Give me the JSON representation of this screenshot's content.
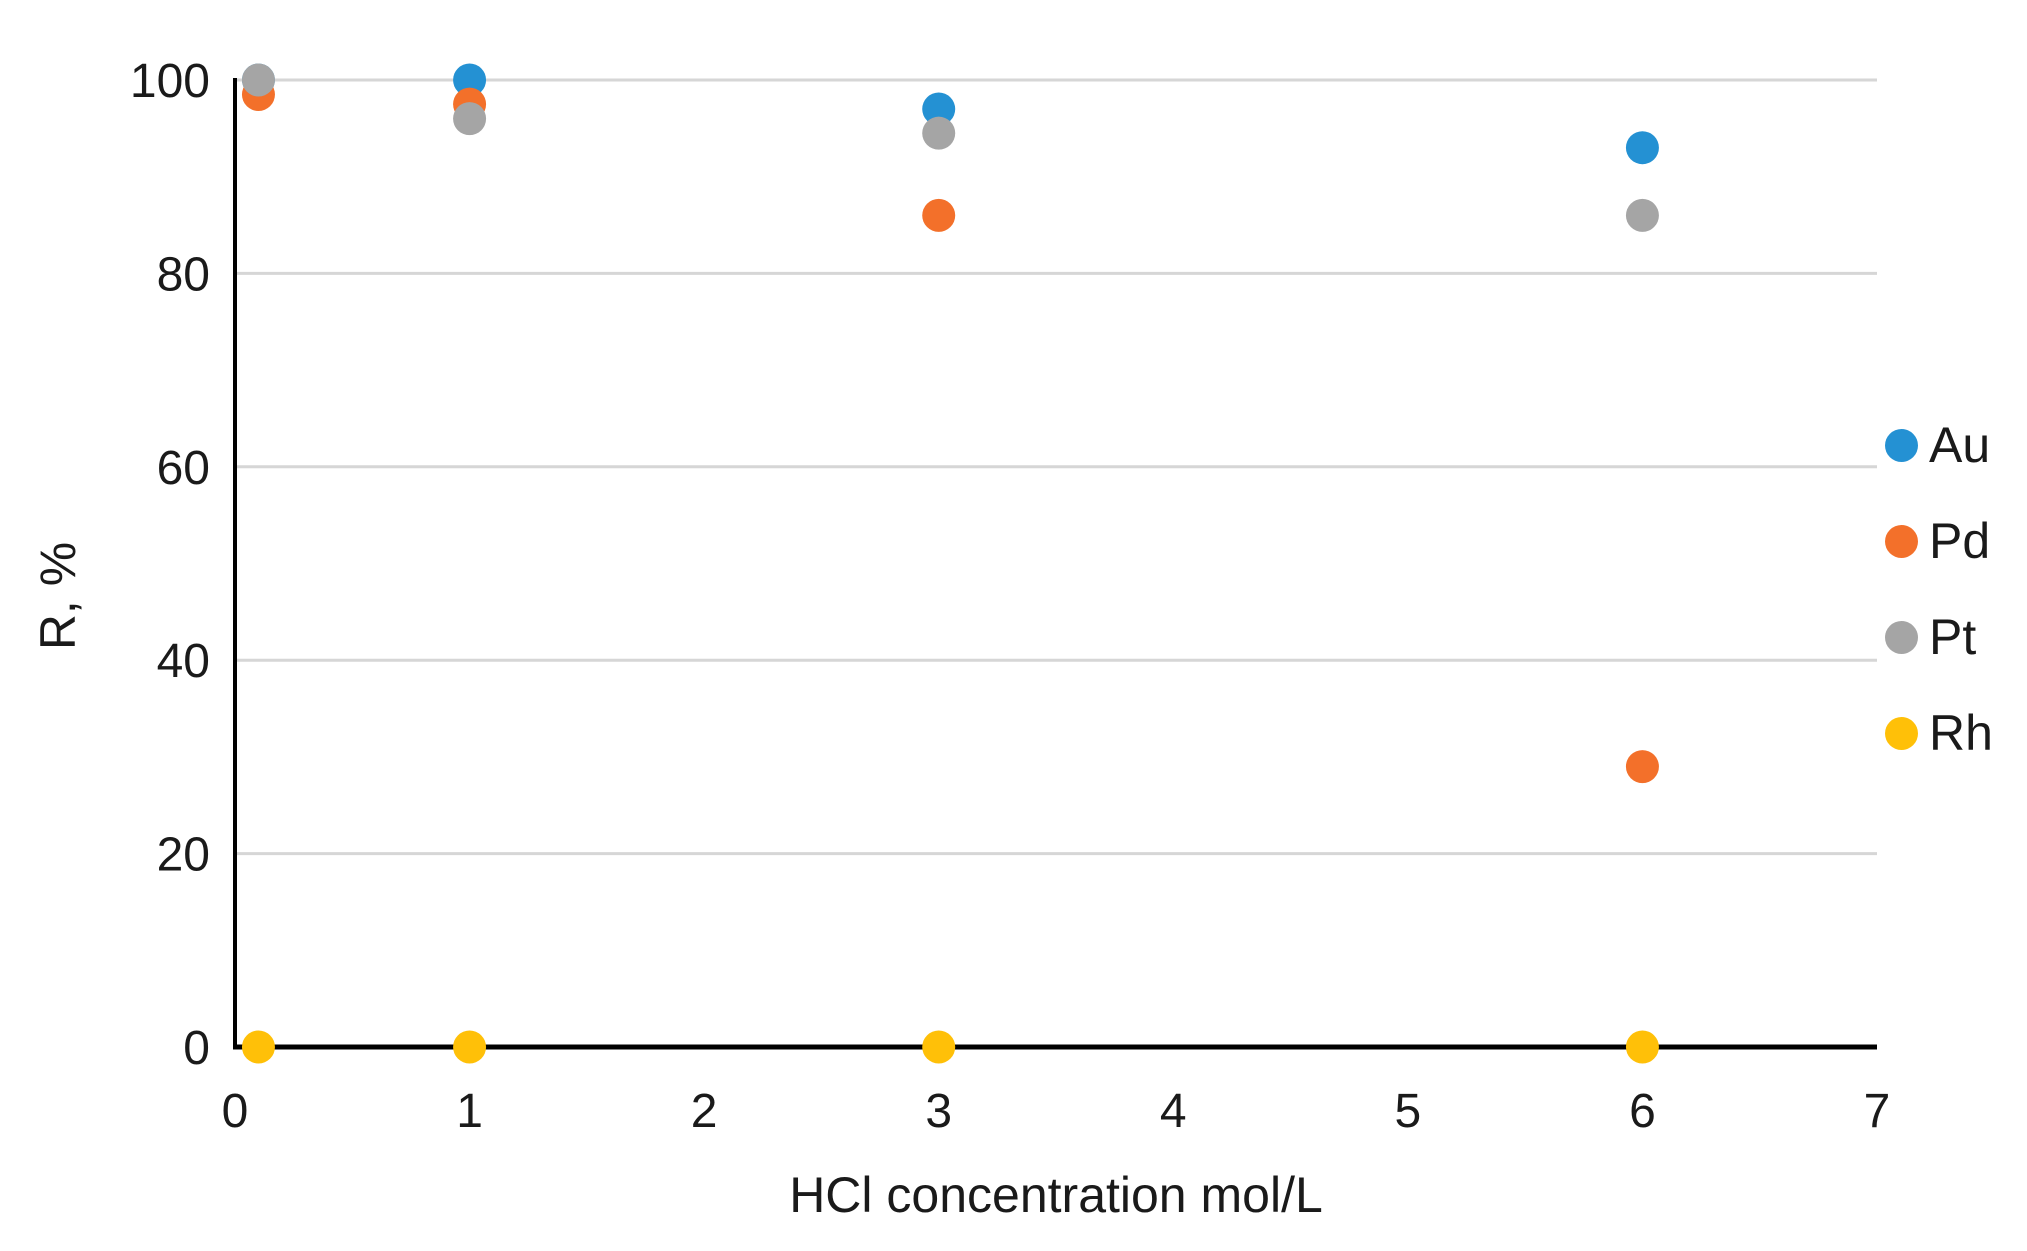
{
  "colors": {
    "background": "#FFFFFF",
    "axis": "#000000",
    "gridline": "#D6D6D6",
    "tick_text": "#1A1A1A"
  },
  "chart_data": {
    "type": "scatter",
    "title": "",
    "xlabel": "HCl concentration mol/L",
    "ylabel": "R, %",
    "xlim": [
      0,
      7
    ],
    "ylim": [
      0,
      100
    ],
    "x_ticks": [
      0,
      1,
      2,
      3,
      4,
      5,
      6,
      7
    ],
    "y_ticks": [
      0,
      20,
      40,
      60,
      80,
      100
    ],
    "grid": "horizontal-only",
    "legend_position": "right",
    "marker": "filled-circle",
    "series": [
      {
        "name": "Au",
        "color": "#2491D3",
        "points": [
          [
            0.1,
            100
          ],
          [
            1,
            100
          ],
          [
            3,
            97
          ],
          [
            6,
            93
          ]
        ]
      },
      {
        "name": "Pd",
        "color": "#F3702A",
        "points": [
          [
            0.1,
            98.5
          ],
          [
            1,
            97.5
          ],
          [
            3,
            86
          ],
          [
            6,
            29
          ]
        ]
      },
      {
        "name": "Pt",
        "color": "#A5A5A5",
        "points": [
          [
            0.1,
            100
          ],
          [
            1,
            96
          ],
          [
            3,
            94.5
          ],
          [
            6,
            86
          ]
        ]
      },
      {
        "name": "Rh",
        "color": "#FFC008",
        "points": [
          [
            0.1,
            0
          ],
          [
            1,
            0
          ],
          [
            3,
            0
          ],
          [
            6,
            0
          ]
        ]
      }
    ]
  }
}
